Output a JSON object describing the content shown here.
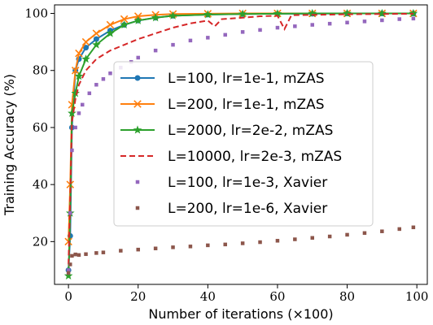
{
  "chart_data": {
    "type": "line",
    "title": "",
    "xlabel": "Number of iterations (×100)",
    "ylabel": "Training Accuracy (%)",
    "xlim": [
      -4,
      103
    ],
    "ylim": [
      5,
      103
    ],
    "xticks": [
      0,
      20,
      40,
      60,
      80,
      100
    ],
    "yticks": [
      20,
      40,
      60,
      80,
      100
    ],
    "grid": false,
    "legend_position": "center-right",
    "series": [
      {
        "name": "L=100, lr=1e-1, mZAS",
        "color": "#1f77b4",
        "line": "solid",
        "marker": "circle",
        "x": [
          0,
          0.5,
          1,
          2,
          3,
          5,
          8,
          12,
          16,
          20,
          25,
          30,
          40,
          50,
          60,
          70,
          80,
          90,
          99
        ],
        "y": [
          10,
          22,
          60,
          80,
          84,
          88,
          91,
          94,
          96,
          97.5,
          98.5,
          99.2,
          99.6,
          99.8,
          99.9,
          99.9,
          100,
          100,
          100
        ]
      },
      {
        "name": "L=200, lr=1e-1, mZAS",
        "color": "#ff7f0e",
        "line": "solid",
        "marker": "x",
        "x": [
          0,
          0.5,
          1,
          2,
          3,
          5,
          8,
          12,
          16,
          20,
          25,
          30,
          40,
          50,
          60,
          70,
          80,
          90,
          99
        ],
        "y": [
          20,
          40,
          68,
          80,
          86,
          90,
          93,
          96,
          98,
          99,
          99.5,
          99.8,
          99.9,
          100,
          100,
          100,
          100,
          100,
          100
        ]
      },
      {
        "name": "L=2000, lr=2e-2, mZAS",
        "color": "#2ca02c",
        "line": "solid",
        "marker": "star",
        "x": [
          0,
          0.5,
          1,
          2,
          3,
          5,
          8,
          12,
          16,
          20,
          25,
          30,
          40,
          50,
          60,
          70,
          80,
          90,
          99
        ],
        "y": [
          8,
          30,
          65,
          72,
          78,
          84,
          89,
          93,
          96,
          97.5,
          98.5,
          99.2,
          99.6,
          99.8,
          99.9,
          100,
          100,
          100,
          100
        ]
      },
      {
        "name": "L=10000, lr=2e-3, mZAS",
        "color": "#d62728",
        "line": "dashed",
        "marker": "none",
        "x": [
          0,
          0.5,
          1,
          2,
          3,
          5,
          8,
          12,
          16,
          20,
          25,
          30,
          35,
          40,
          42,
          44,
          50,
          55,
          60,
          62,
          64,
          70,
          80,
          90,
          99
        ],
        "y": [
          12,
          35,
          62,
          70,
          75,
          80,
          84,
          87,
          89,
          91,
          93,
          95,
          96.5,
          97.5,
          95.5,
          98,
          98.5,
          99,
          99.2,
          94.5,
          99.4,
          99.5,
          99.7,
          99.8,
          99.9
        ]
      },
      {
        "name": "L=100, lr=1e-3, Xavier",
        "color": "#9467bd",
        "line": "none",
        "marker": "square",
        "x": [
          0,
          0.5,
          1,
          2,
          3,
          4,
          6,
          8,
          10,
          12,
          15,
          18,
          20,
          25,
          30,
          35,
          40,
          45,
          50,
          55,
          60,
          65,
          70,
          75,
          80,
          85,
          90,
          95,
          99
        ],
        "y": [
          10,
          30,
          52,
          60,
          65,
          68,
          72,
          75,
          77,
          79,
          81,
          83,
          84.5,
          87,
          89,
          90.5,
          91.5,
          92.5,
          93.5,
          94.2,
          95,
          95.5,
          96,
          96.4,
          96.8,
          97.2,
          97.6,
          98,
          98.2
        ]
      },
      {
        "name": "L=200, lr=1e-6, Xavier",
        "color": "#8c564b",
        "line": "none",
        "marker": "square",
        "x": [
          0,
          0.5,
          1,
          2,
          3,
          5,
          8,
          10,
          15,
          20,
          25,
          30,
          35,
          40,
          45,
          50,
          55,
          60,
          65,
          70,
          75,
          80,
          85,
          90,
          95,
          99
        ],
        "y": [
          9,
          12,
          15,
          15.5,
          15.3,
          15.6,
          16,
          16.2,
          16.8,
          17.2,
          17.6,
          18,
          18.3,
          18.7,
          19,
          19.4,
          19.8,
          20.3,
          20.8,
          21.3,
          21.8,
          22.4,
          23,
          23.6,
          24.4,
          25
        ]
      }
    ]
  }
}
